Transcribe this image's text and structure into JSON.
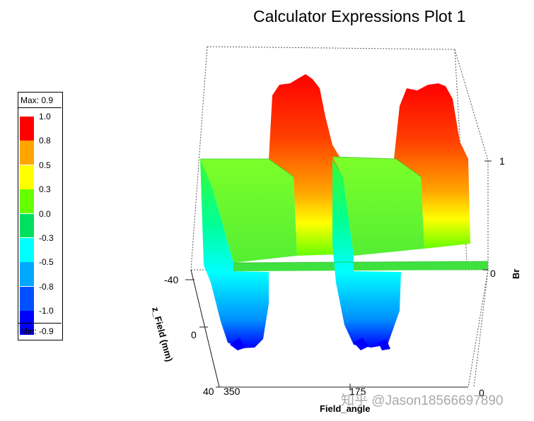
{
  "chart_data": {
    "type": "surface3d",
    "title": "Calculator Expressions Plot 1",
    "x_axis": {
      "label": "Field_angle",
      "ticks": [
        "350",
        "175",
        "0"
      ]
    },
    "y_axis": {
      "label": "z_Field (mm)",
      "ticks": [
        "-40",
        "0",
        "40"
      ]
    },
    "z_axis": {
      "label": "Br",
      "ticks": [
        "1",
        "0"
      ]
    },
    "legend": {
      "max_label": "Max: 0.9",
      "min_label": "Min: -0.9",
      "entries": [
        {
          "label": "1.0",
          "color": "#ff0000"
        },
        {
          "label": "0.8",
          "color": "#ffa500"
        },
        {
          "label": "0.5",
          "color": "#ffff00"
        },
        {
          "label": "0.3",
          "color": "#66ff00"
        },
        {
          "label": "0.0",
          "color": "#00e060"
        },
        {
          "label": "-0.3",
          "color": "#00ffff"
        },
        {
          "label": "-0.5",
          "color": "#00a8ff"
        },
        {
          "label": "-0.8",
          "color": "#0050ff"
        },
        {
          "label": "-1.0",
          "color": "#0000ff"
        }
      ]
    },
    "series": [
      {
        "values": [
          0.0,
          -0.85,
          0.0,
          0.9,
          0.0,
          -0.85,
          0.0,
          0.9
        ],
        "x": [
          350,
          306,
          262,
          219,
          175,
          131,
          88,
          44
        ]
      }
    ]
  },
  "watermark": "知乎 @Jason18566697890"
}
